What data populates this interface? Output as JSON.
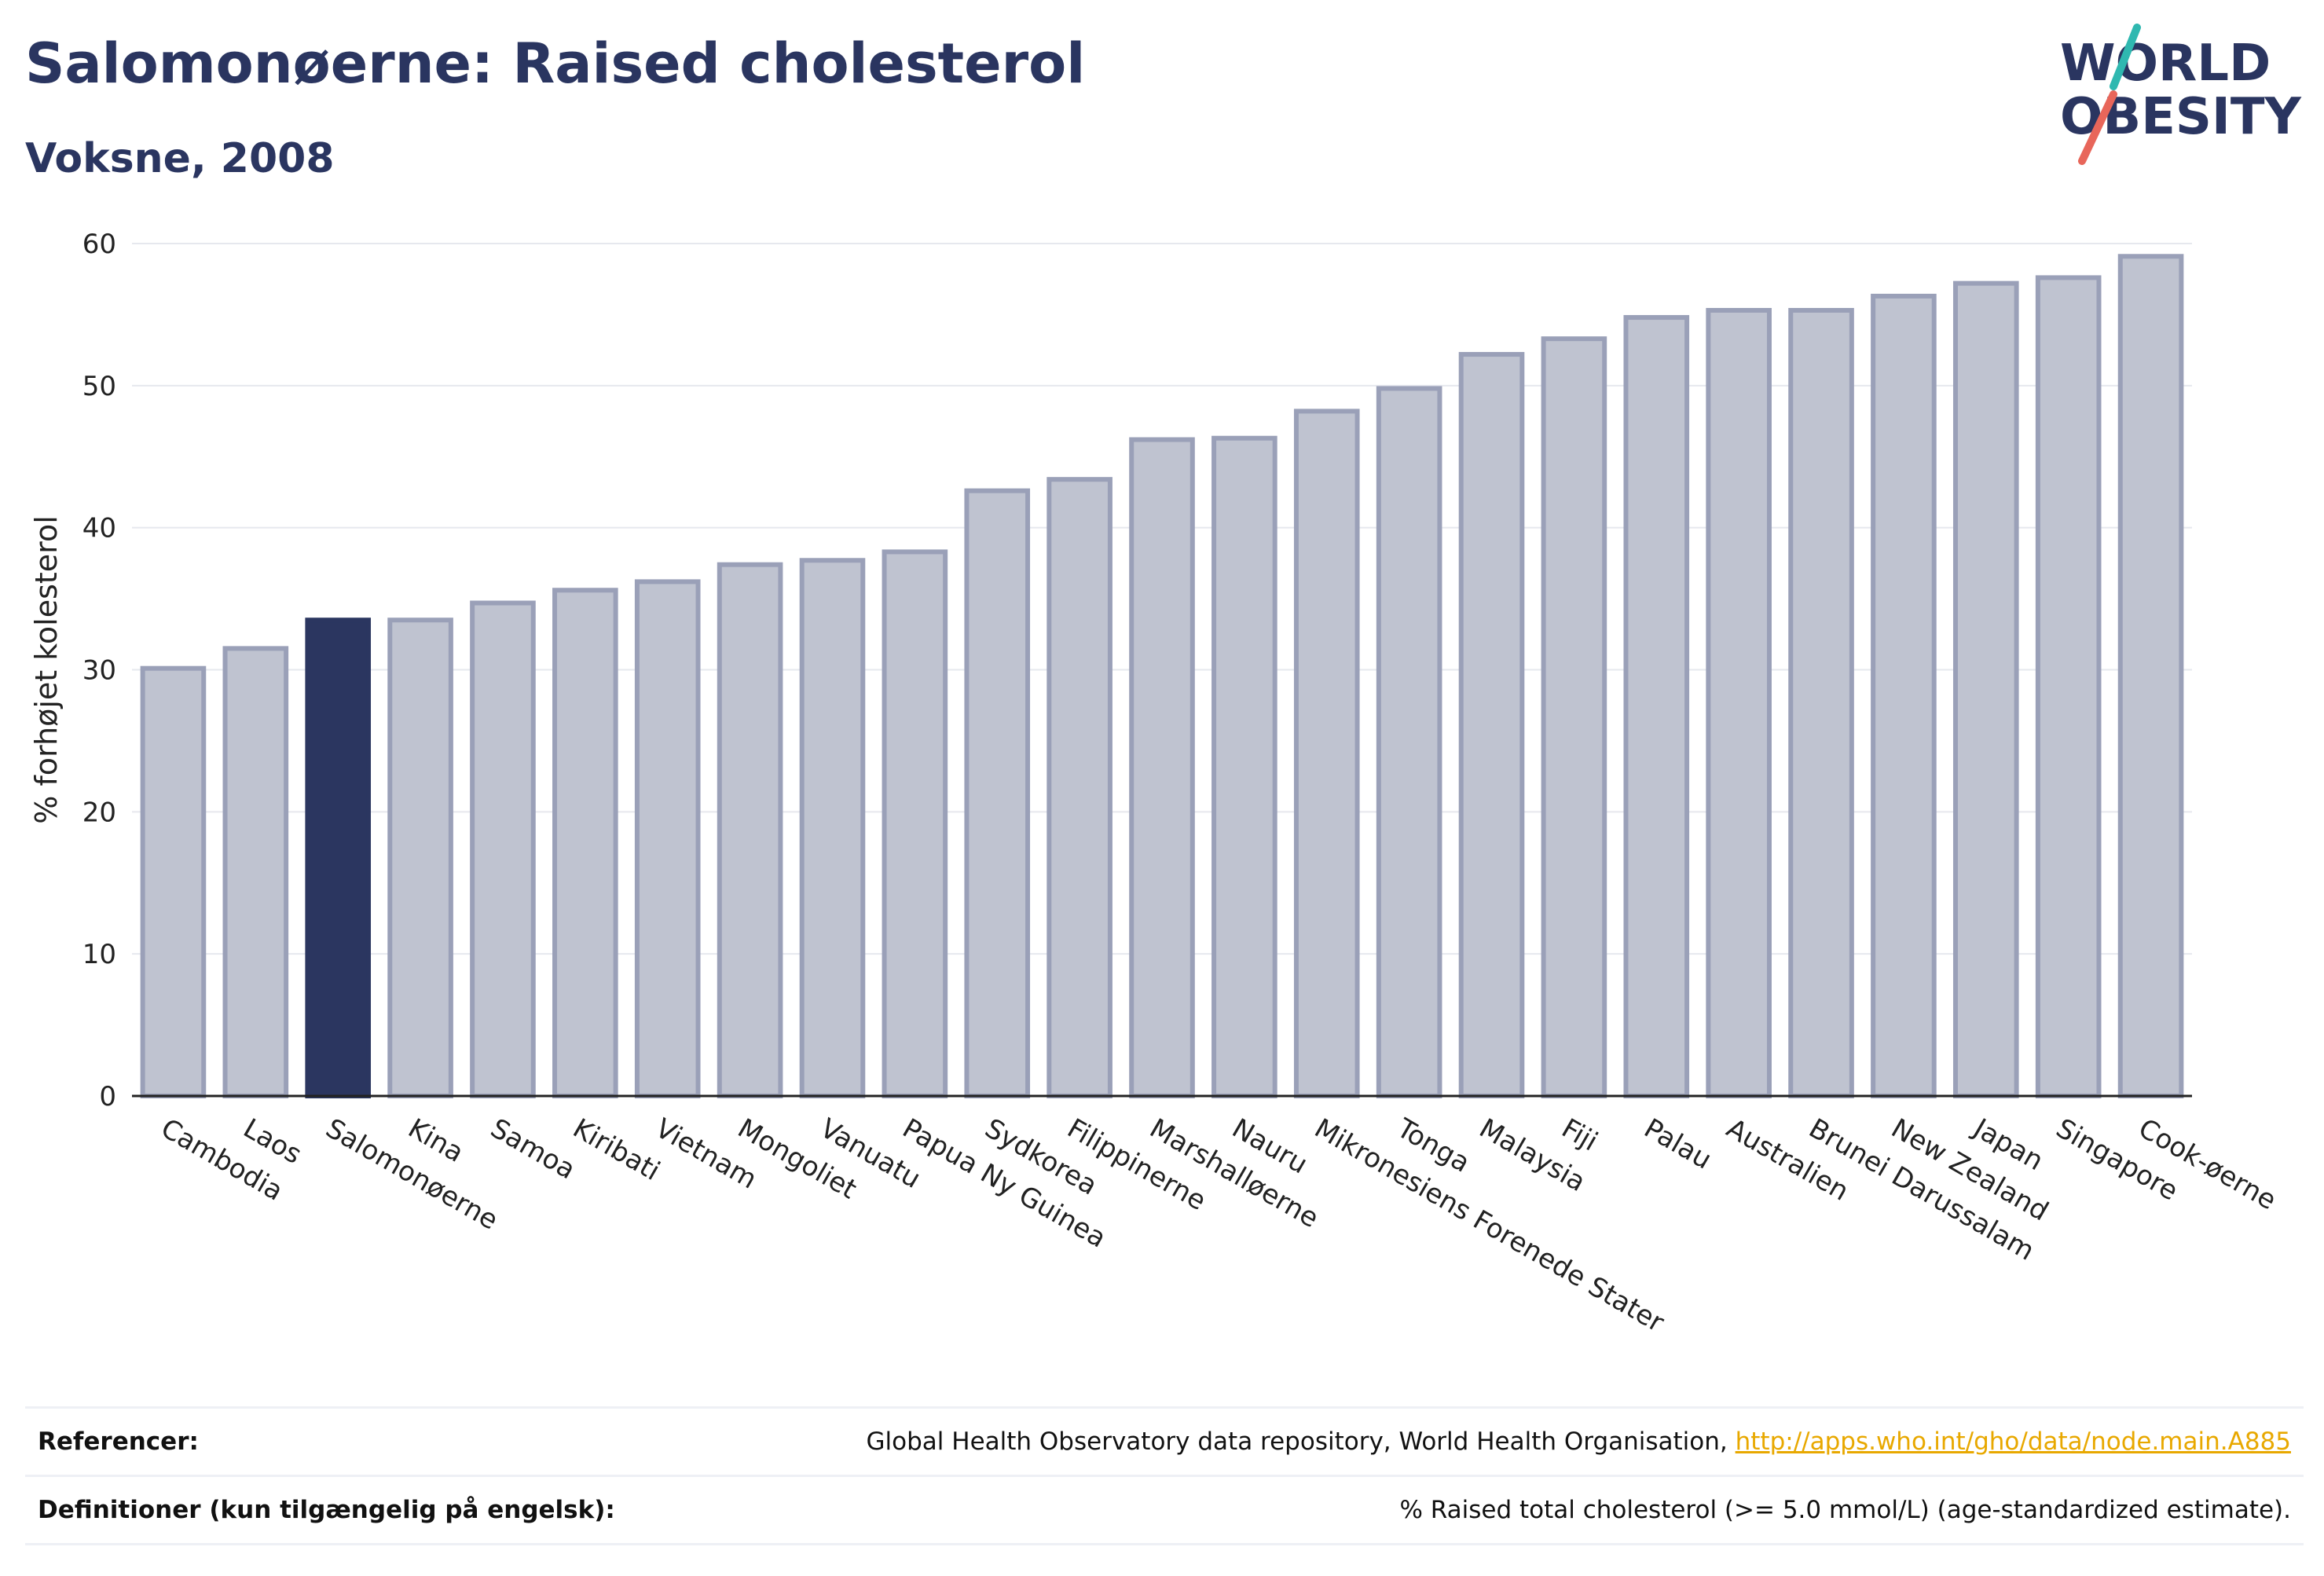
{
  "header": {
    "title": "Salomonøerne: Raised cholesterol",
    "subtitle": "Voksne, 2008"
  },
  "logo": {
    "line1": "WORLD",
    "line2": "OBESITY"
  },
  "chart_data": {
    "type": "bar",
    "ylabel": "% forhøjet kolesterol",
    "xlabel": "",
    "ylim": [
      0,
      60
    ],
    "yticks": [
      0,
      10,
      20,
      30,
      40,
      50,
      60
    ],
    "grid": true,
    "highlight": "Salomonøerne",
    "colors": {
      "bar": "#bfc3d0",
      "bar_stroke": "#9aa0b8",
      "highlight": "#2b3660"
    },
    "categories": [
      "Cambodia",
      "Laos",
      "Salomonøerne",
      "Kina",
      "Samoa",
      "Kiribati",
      "Vietnam",
      "Mongoliet",
      "Vanuatu",
      "Papua Ny Guinea",
      "Sydkorea",
      "Filippinerne",
      "Marshalløerne",
      "Nauru",
      "Mikronesiens Forenede Stater",
      "Tonga",
      "Malaysia",
      "Fiji",
      "Palau",
      "Australien",
      "Brunei Darussalam",
      "New Zealand",
      "Japan",
      "Singapore",
      "Cook-øerne"
    ],
    "values": [
      30.1,
      31.5,
      33.5,
      33.5,
      34.7,
      35.6,
      36.2,
      37.4,
      37.7,
      38.3,
      42.6,
      43.4,
      46.2,
      46.3,
      48.2,
      49.8,
      52.2,
      53.3,
      54.8,
      55.3,
      55.3,
      56.3,
      57.2,
      57.6,
      59.1
    ]
  },
  "footer": {
    "references_label": "Referencer:",
    "references_text": "Global Health Observatory data repository, World Health Organisation, ",
    "references_link": "http://apps.who.int/gho/data/node.main.A885",
    "definitions_label": "Definitioner (kun tilgængelig på engelsk):",
    "definitions_text": "% Raised total cholesterol (>= 5.0 mmol/L) (age-standardized estimate)."
  }
}
